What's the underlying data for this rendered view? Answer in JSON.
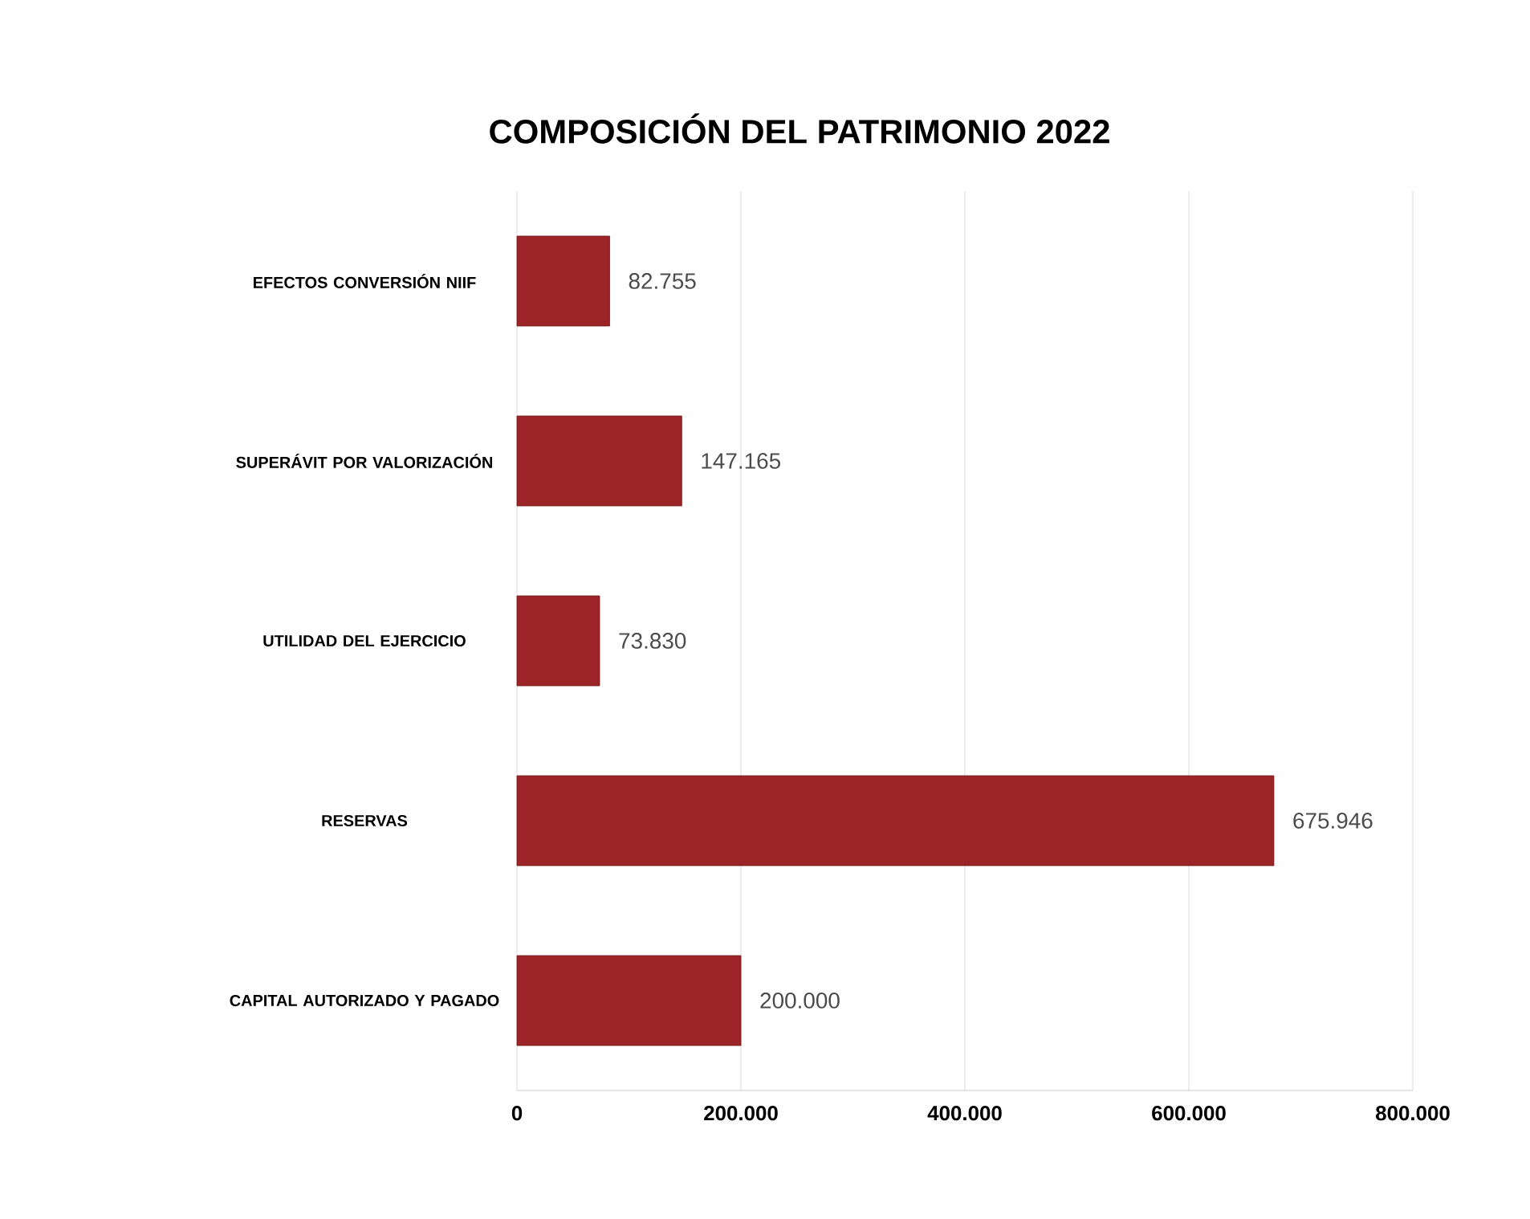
{
  "chart_data": {
    "type": "bar",
    "orientation": "horizontal",
    "title": "COMPOSICIÓN DEL PATRIMONIO 2022",
    "categories": [
      "EFECTOS CONVERSIÓN NIIF",
      "SUPERÁVIT POR VALORIZACIÓN",
      "UTILIDAD DEL EJERCICIO",
      "RESERVAS",
      "CAPITAL AUTORIZADO Y PAGADO"
    ],
    "values": [
      82755,
      147165,
      73830,
      675946,
      200000
    ],
    "value_labels": [
      "82.755",
      "147.165",
      "73.830",
      "675.946",
      "200.000"
    ],
    "color": "#9b2426",
    "xlim": [
      0,
      800000
    ],
    "xticks": [
      {
        "value": 0,
        "label": "0"
      },
      {
        "value": 200000,
        "label": "200.000"
      },
      {
        "value": 400000,
        "label": "400.000"
      },
      {
        "value": 600000,
        "label": "600.000"
      },
      {
        "value": 800000,
        "label": "800.000"
      }
    ],
    "grid": "x"
  }
}
